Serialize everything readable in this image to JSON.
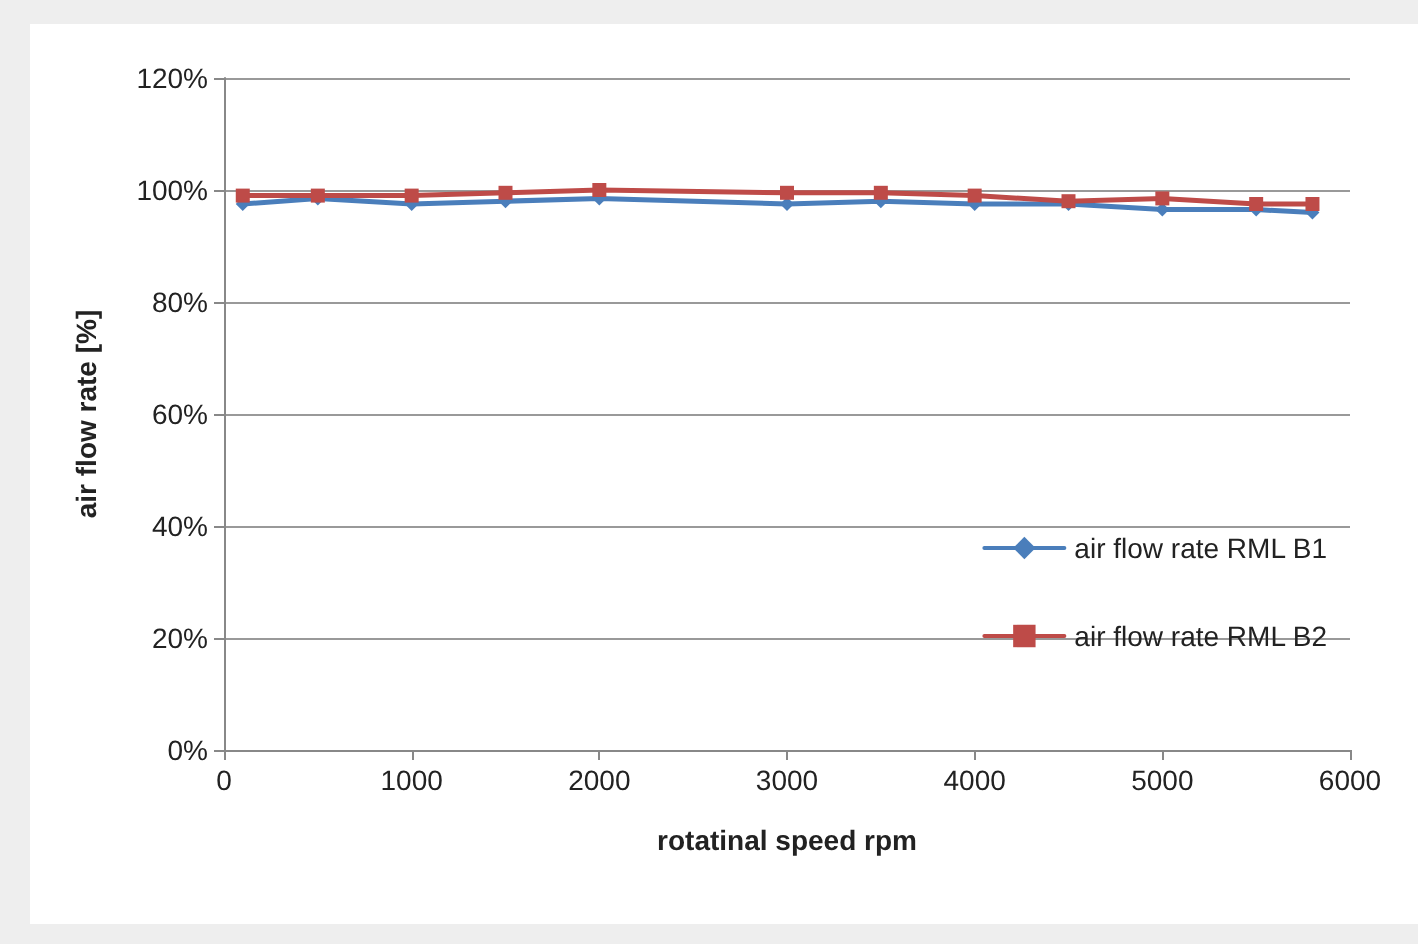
{
  "chart_data": {
    "type": "line",
    "xlabel": "rotatinal speed rpm",
    "ylabel": "air flow rate [%]",
    "x": [
      100,
      500,
      1000,
      1500,
      2000,
      3000,
      3500,
      4000,
      4500,
      5000,
      5500,
      5800
    ],
    "series": [
      {
        "name": "air flow rate RML B1",
        "color": "#4a7ebb",
        "marker": "diamond",
        "values": [
          97.5,
          98.5,
          97.5,
          98,
          98.5,
          97.5,
          98,
          97.5,
          97.5,
          96.5,
          96.5,
          96
        ]
      },
      {
        "name": "air flow rate RML B2",
        "color": "#be4b48",
        "marker": "square",
        "values": [
          99,
          99,
          99,
          99.5,
          100,
          99.5,
          99.5,
          99,
          98,
          98.5,
          97.5,
          97.5
        ]
      }
    ],
    "xlim": [
      0,
      6000
    ],
    "xticks": [
      0,
      1000,
      2000,
      3000,
      4000,
      5000,
      6000
    ],
    "ylim": [
      0,
      120
    ],
    "yticks": [
      {
        "value": 0,
        "label": "0%"
      },
      {
        "value": 20,
        "label": "20%"
      },
      {
        "value": 40,
        "label": "40%"
      },
      {
        "value": 60,
        "label": "60%"
      },
      {
        "value": 80,
        "label": "80%"
      },
      {
        "value": 100,
        "label": "100%"
      },
      {
        "value": 120,
        "label": "120%"
      }
    ],
    "grid": "y",
    "legend": "right"
  }
}
